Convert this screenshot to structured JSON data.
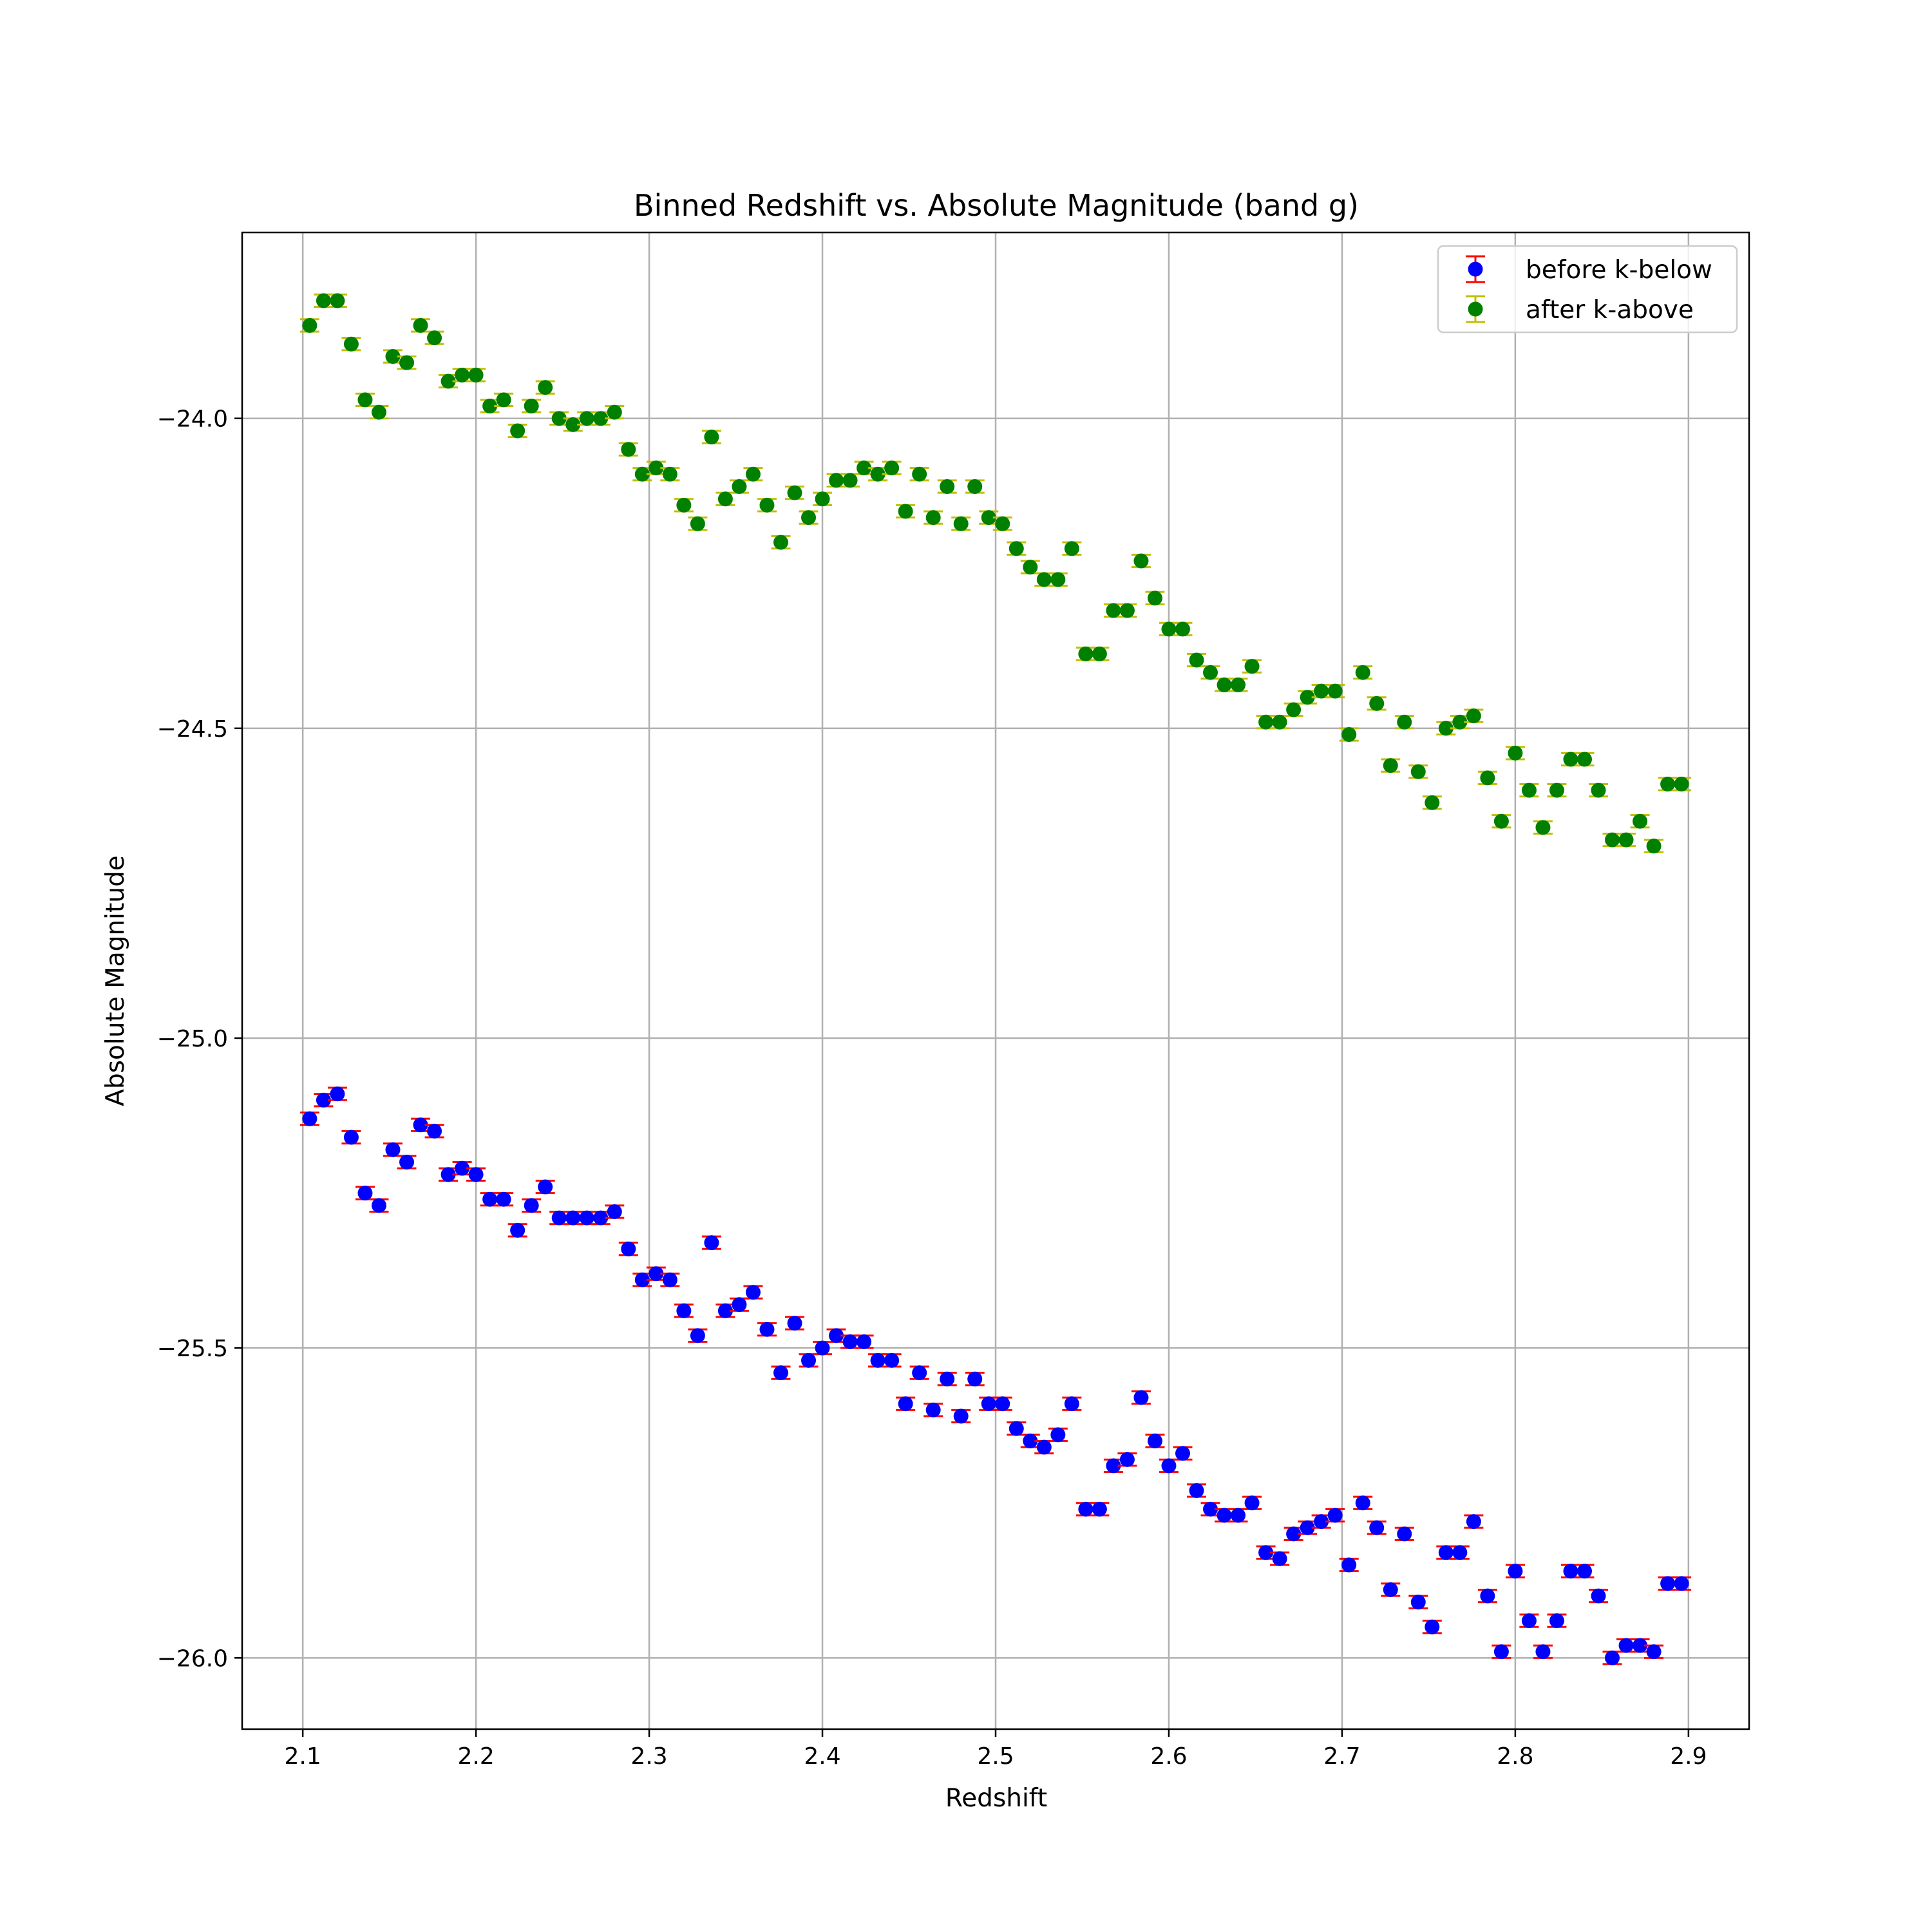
{
  "chart_data": {
    "type": "scatter",
    "title": "Binned Redshift vs. Absolute Magnitude (band g)",
    "xlabel": "Redshift",
    "ylabel": "Absolute Magnitude",
    "xlim": [
      2.065,
      2.935
    ],
    "ylim": [
      -26.115,
      -23.7
    ],
    "y_inverted": false,
    "xticks": [
      2.1,
      2.2,
      2.3,
      2.4,
      2.5,
      2.6,
      2.7,
      2.8,
      2.9
    ],
    "xtick_labels": [
      "2.1",
      "2.2",
      "2.3",
      "2.4",
      "2.5",
      "2.6",
      "2.7",
      "2.8",
      "2.9"
    ],
    "yticks": [
      -24.0,
      -24.5,
      -25.0,
      -25.5,
      -26.0
    ],
    "ytick_labels": [
      "−24.0",
      "−24.5",
      "−25.0",
      "−25.5",
      "−26.0"
    ],
    "grid": true,
    "legend_position": "top-right",
    "x": [
      2.104,
      2.112,
      2.12,
      2.128,
      2.136,
      2.144,
      2.152,
      2.16,
      2.168,
      2.176,
      2.184,
      2.192,
      2.2,
      2.208,
      2.216,
      2.224,
      2.232,
      2.24,
      2.248,
      2.256,
      2.264,
      2.272,
      2.28,
      2.288,
      2.296,
      2.304,
      2.312,
      2.32,
      2.328,
      2.336,
      2.344,
      2.352,
      2.36,
      2.368,
      2.376,
      2.384,
      2.392,
      2.4,
      2.408,
      2.416,
      2.424,
      2.432,
      2.44,
      2.448,
      2.456,
      2.464,
      2.472,
      2.48,
      2.488,
      2.496,
      2.504,
      2.512,
      2.52,
      2.528,
      2.536,
      2.544,
      2.552,
      2.56,
      2.568,
      2.576,
      2.584,
      2.592,
      2.6,
      2.608,
      2.616,
      2.624,
      2.632,
      2.64,
      2.648,
      2.656,
      2.664,
      2.672,
      2.68,
      2.688,
      2.696,
      2.704,
      2.712,
      2.72,
      2.728,
      2.736,
      2.744,
      2.752,
      2.76,
      2.768,
      2.776,
      2.784,
      2.792,
      2.8,
      2.808,
      2.816,
      2.824,
      2.832,
      2.84,
      2.848,
      2.856,
      2.864,
      2.872,
      2.88,
      2.888,
      2.896
    ],
    "series": [
      {
        "name": "before k-below",
        "marker_color": "#0000ff",
        "errorbar_color": "#ff0000",
        "yerr": 0.01,
        "y": [
          -25.13,
          -25.1,
          -25.09,
          -25.16,
          -25.25,
          -25.27,
          -25.18,
          -25.2,
          -25.14,
          -25.15,
          -25.22,
          -25.21,
          -25.22,
          -25.26,
          -25.26,
          -25.31,
          -25.27,
          -25.24,
          -25.29,
          -25.29,
          -25.29,
          -25.29,
          -25.28,
          -25.34,
          -25.39,
          -25.38,
          -25.39,
          -25.44,
          -25.48,
          -25.33,
          -25.44,
          -25.43,
          -25.41,
          -25.47,
          -25.54,
          -25.46,
          -25.52,
          -25.5,
          -25.48,
          -25.49,
          -25.49,
          -25.52,
          -25.52,
          -25.59,
          -25.54,
          -25.6,
          -25.55,
          -25.61,
          -25.55,
          -25.59,
          -25.59,
          -25.63,
          -25.65,
          -25.66,
          -25.64,
          -25.59,
          -25.76,
          -25.76,
          -25.69,
          -25.68,
          -25.58,
          -25.65,
          -25.69,
          -25.67,
          -25.73,
          -25.76,
          -25.77,
          -25.77,
          -25.75,
          -25.83,
          -25.84,
          -25.8,
          -25.79,
          -25.78,
          -25.77,
          -25.85,
          -25.75,
          -25.79,
          -25.89,
          -25.8,
          -25.91,
          -25.95,
          -25.83,
          -25.83,
          -25.78,
          -25.9,
          -25.99,
          -25.86,
          -25.94,
          -25.99,
          -25.94,
          -25.86,
          -25.86,
          -25.9,
          -26.0,
          -25.98,
          -25.98,
          -25.99,
          -25.88,
          -25.88
        ]
      },
      {
        "name": "after k-above",
        "marker_color": "#008000",
        "errorbar_color": "#bfbf00",
        "yerr": 0.01,
        "y": [
          -23.85,
          -23.81,
          -23.81,
          -23.88,
          -23.97,
          -23.99,
          -23.9,
          -23.91,
          -23.85,
          -23.87,
          -23.94,
          -23.93,
          -23.93,
          -23.98,
          -23.97,
          -24.02,
          -23.98,
          -23.95,
          -24.0,
          -24.01,
          -24.0,
          -24.0,
          -23.99,
          -24.05,
          -24.09,
          -24.08,
          -24.09,
          -24.14,
          -24.17,
          -24.03,
          -24.13,
          -24.11,
          -24.09,
          -24.14,
          -24.2,
          -24.12,
          -24.16,
          -24.13,
          -24.1,
          -24.1,
          -24.08,
          -24.09,
          -24.08,
          -24.15,
          -24.09,
          -24.16,
          -24.11,
          -24.17,
          -24.11,
          -24.16,
          -24.17,
          -24.21,
          -24.24,
          -24.26,
          -24.26,
          -24.21,
          -24.38,
          -24.38,
          -24.31,
          -24.31,
          -24.23,
          -24.29,
          -24.34,
          -24.34,
          -24.39,
          -24.41,
          -24.43,
          -24.43,
          -24.4,
          -24.49,
          -24.49,
          -24.47,
          -24.45,
          -24.44,
          -24.44,
          -24.51,
          -24.41,
          -24.46,
          -24.56,
          -24.49,
          -24.57,
          -24.62,
          -24.5,
          -24.49,
          -24.48,
          -24.58,
          -24.65,
          -24.54,
          -24.6,
          -24.66,
          -24.6,
          -24.55,
          -24.55,
          -24.6,
          -24.68,
          -24.68,
          -24.65,
          -24.69,
          -24.59,
          -24.59
        ]
      }
    ]
  }
}
